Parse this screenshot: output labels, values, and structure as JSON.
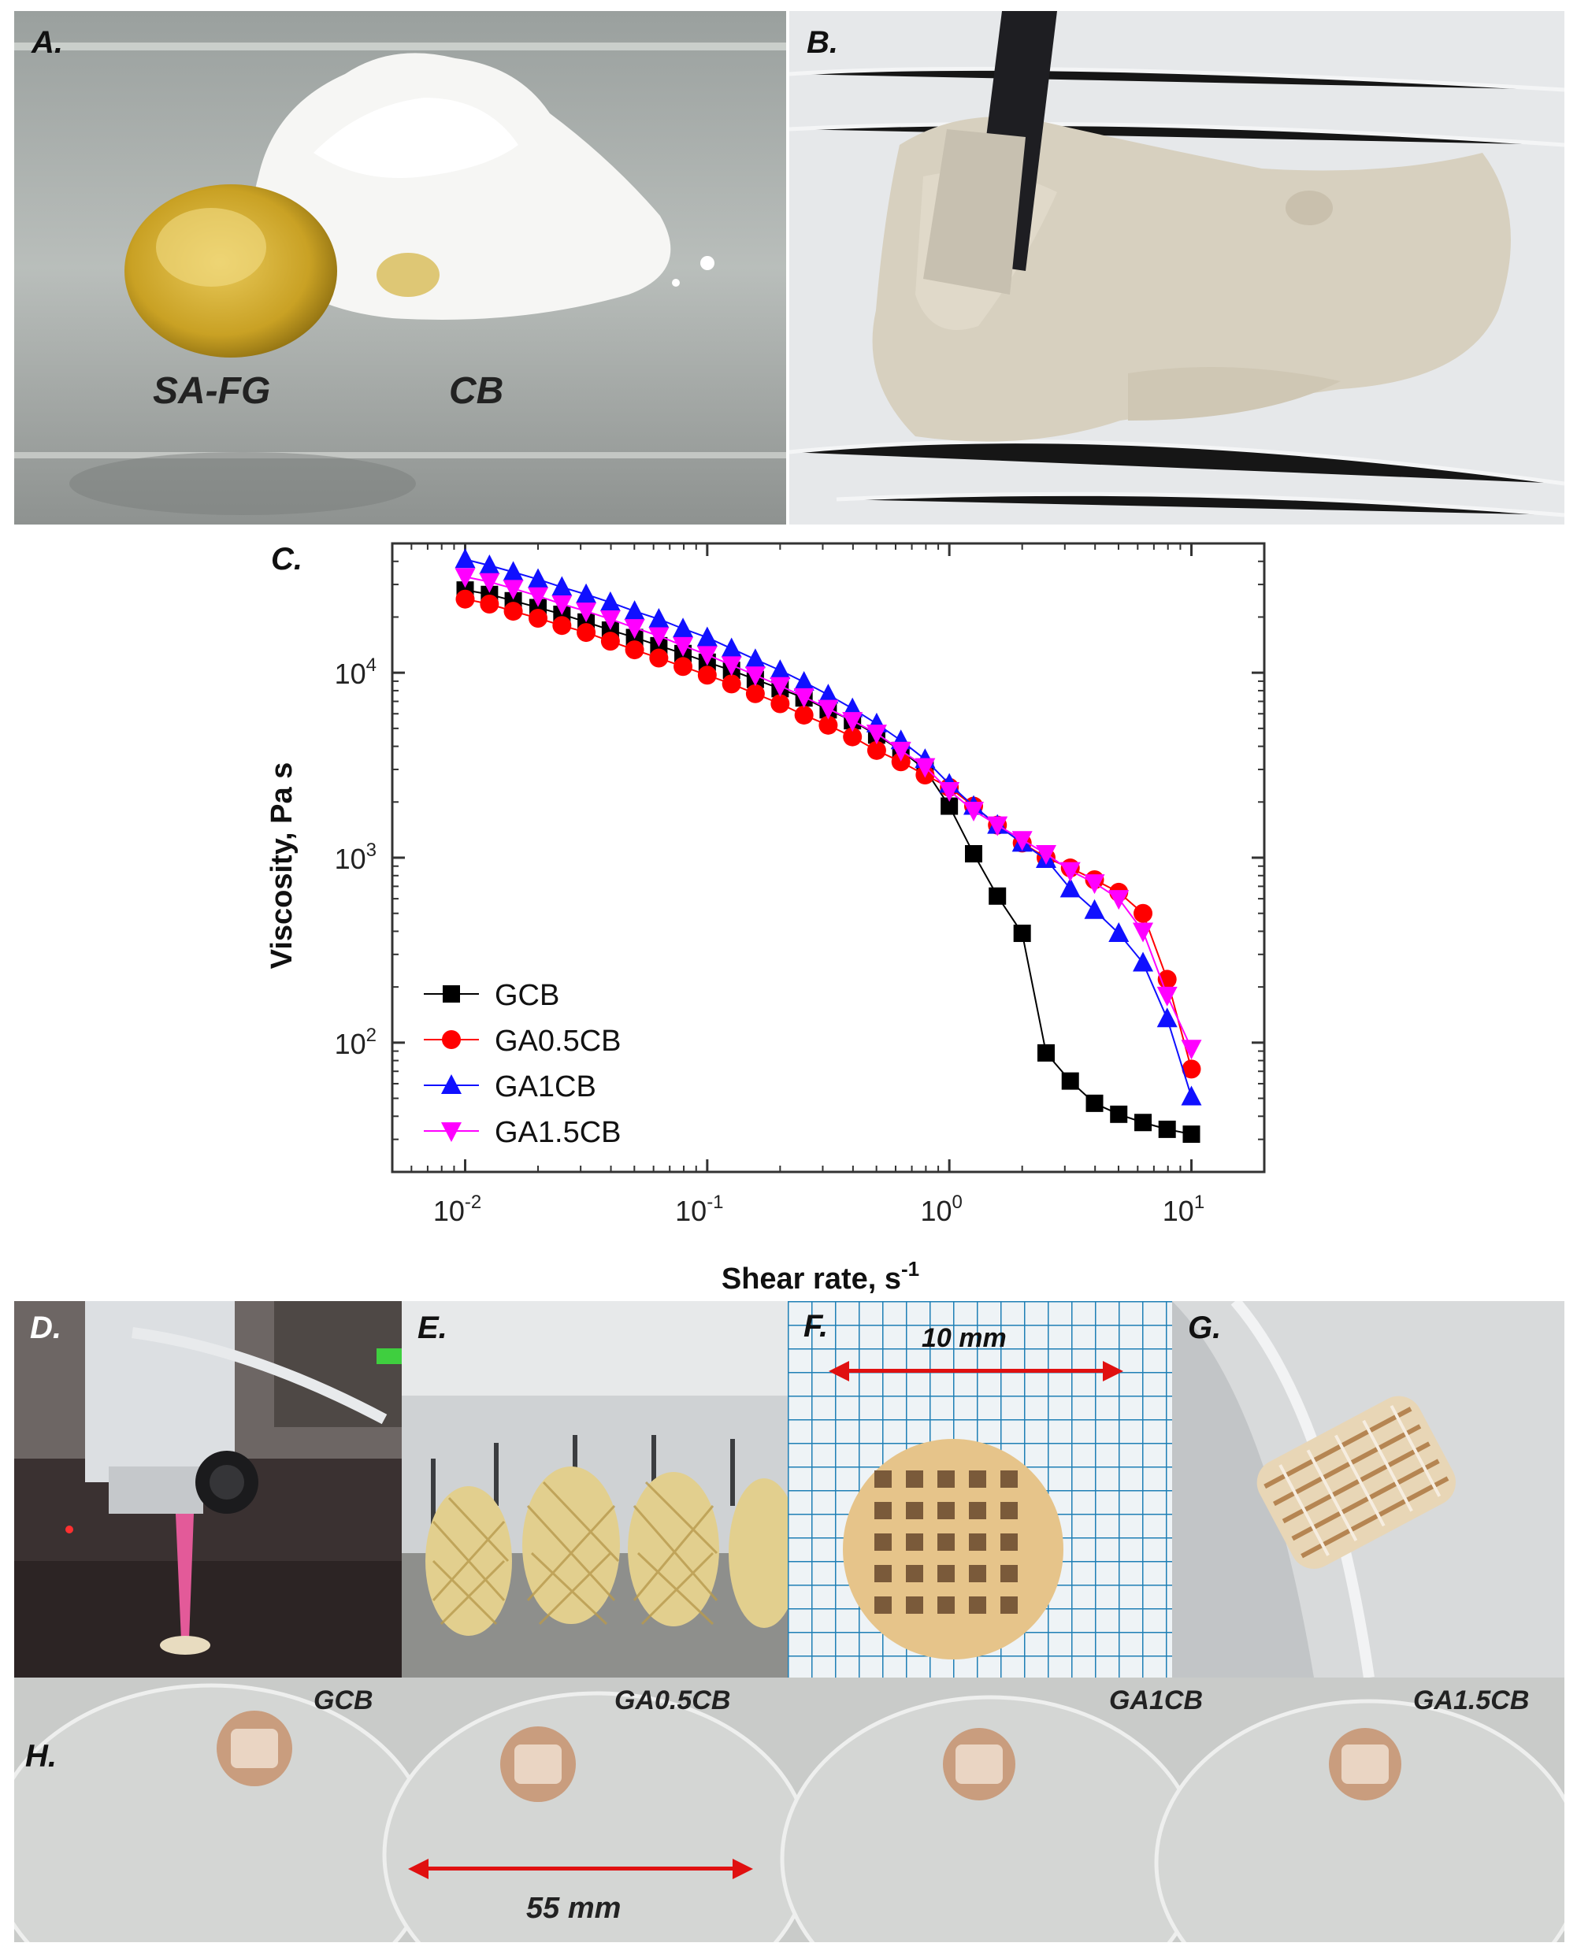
{
  "panels": {
    "a": {
      "label": "A.",
      "annotations": [
        "SA-FG",
        "CB"
      ]
    },
    "b": {
      "label": "B."
    },
    "c": {
      "label": "C."
    },
    "d": {
      "label": "D."
    },
    "e": {
      "label": "E."
    },
    "f": {
      "label": "F.",
      "scale_text": "10 mm"
    },
    "g": {
      "label": "G."
    },
    "h": {
      "label": "H.",
      "sample_labels": [
        "GCB",
        "GA0.5CB",
        "GA1CB",
        "GA1.5CB"
      ],
      "scale_text": "55 mm"
    }
  },
  "chart_data": {
    "type": "scatter-line",
    "xlabel": "Shear rate, s",
    "xlabel_sup": "-1",
    "ylabel": "Viscosity, Pa s",
    "xscale": "log",
    "yscale": "log",
    "xlim": [
      0.005,
      20
    ],
    "ylim": [
      20,
      50000
    ],
    "x_ticks": [
      {
        "base": "10",
        "exp": "-2"
      },
      {
        "base": "10",
        "exp": "-1"
      },
      {
        "base": "10",
        "exp": "0"
      },
      {
        "base": "10",
        "exp": "1"
      }
    ],
    "y_ticks": [
      {
        "base": "10",
        "exp": "2"
      },
      {
        "base": "10",
        "exp": "3"
      },
      {
        "base": "10",
        "exp": "4"
      }
    ],
    "legend_position": "bottom-left",
    "x": [
      0.01,
      0.0126,
      0.0158,
      0.02,
      0.0251,
      0.0316,
      0.0398,
      0.0501,
      0.0631,
      0.0794,
      0.1,
      0.126,
      0.158,
      0.2,
      0.251,
      0.316,
      0.398,
      0.501,
      0.631,
      0.794,
      1.0,
      1.26,
      1.58,
      2.0,
      2.51,
      3.16,
      3.98,
      5.01,
      6.31,
      7.94,
      10.0
    ],
    "series": [
      {
        "name": "GCB",
        "marker": "square",
        "color": "#000000",
        "values": [
          28000,
          26500,
          24500,
          22500,
          20700,
          18800,
          17000,
          15500,
          14000,
          12700,
          11400,
          10300,
          9200,
          8200,
          7300,
          6300,
          5500,
          4600,
          3800,
          3000,
          1900,
          1050,
          620,
          390,
          88,
          62,
          47,
          41,
          37,
          34,
          32
        ]
      },
      {
        "name": "GA0.5CB",
        "marker": "circle",
        "color": "#ff0000",
        "values": [
          25000,
          23500,
          21500,
          19700,
          18000,
          16500,
          14800,
          13300,
          12000,
          10800,
          9700,
          8700,
          7700,
          6800,
          5900,
          5200,
          4500,
          3800,
          3300,
          2800,
          2400,
          1900,
          1500,
          1200,
          1000,
          880,
          760,
          650,
          500,
          220,
          72
        ]
      },
      {
        "name": "GA1CB",
        "marker": "triangle-up",
        "color": "#1010ff",
        "values": [
          41000,
          38000,
          35000,
          32000,
          29000,
          26500,
          24000,
          21500,
          19500,
          17300,
          15500,
          13500,
          11800,
          10300,
          8900,
          7600,
          6400,
          5300,
          4300,
          3400,
          2500,
          1900,
          1500,
          1200,
          980,
          680,
          520,
          390,
          270,
          135,
          51
        ]
      },
      {
        "name": "GA1.5CB",
        "marker": "triangle-down",
        "color": "#ff00ff",
        "values": [
          33000,
          31000,
          28500,
          26000,
          23500,
          21500,
          19500,
          17500,
          15800,
          14000,
          12500,
          11000,
          9700,
          8500,
          7400,
          6400,
          5500,
          4700,
          3800,
          3100,
          2300,
          1800,
          1500,
          1250,
          1050,
          850,
          730,
          600,
          400,
          180,
          93
        ]
      }
    ]
  }
}
